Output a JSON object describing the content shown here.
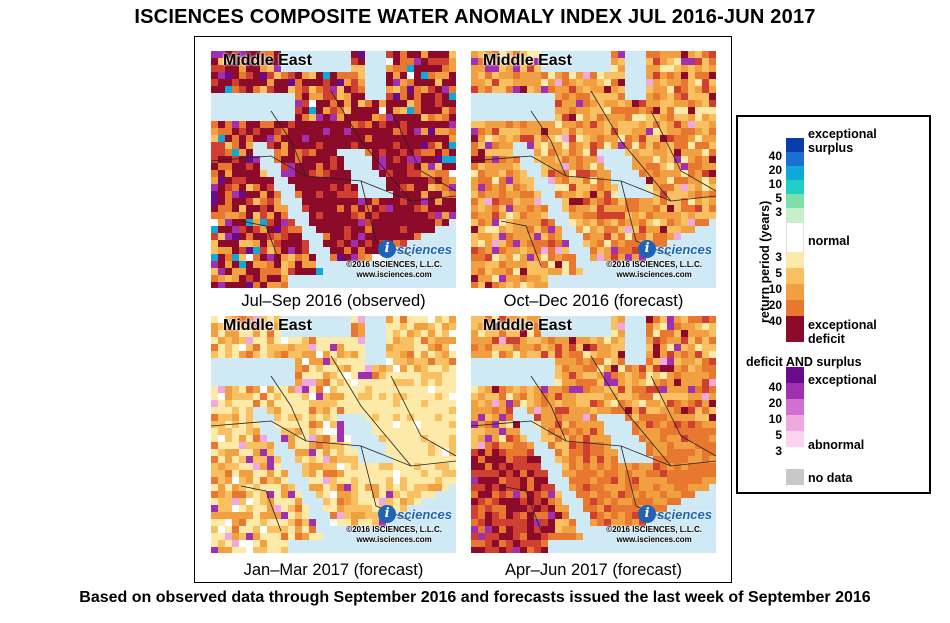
{
  "title": "ISCIENCES COMPOSITE WATER ANOMALY INDEX JUL 2016-JUN 2017",
  "panels": [
    {
      "map_title": "Middle East",
      "caption": "Jul–Sep 2016 (observed)",
      "logo": "sciences",
      "copyright": "©2016  ISCIENCES, L.L.C.",
      "website": "www.isciences.com",
      "dominant": "severe-deficit"
    },
    {
      "map_title": "Middle East",
      "caption": "Oct–Dec 2016 (forecast)",
      "logo": "sciences",
      "copyright": "©2016  ISCIENCES, L.L.C.",
      "website": "www.isciences.com",
      "dominant": "moderate-deficit"
    },
    {
      "map_title": "Middle East",
      "caption": "Jan–Mar 2017 (forecast)",
      "logo": "sciences",
      "copyright": "©2016  ISCIENCES, L.L.C.",
      "website": "www.isciences.com",
      "dominant": "mild-deficit"
    },
    {
      "map_title": "Middle East",
      "caption": "Apr–Jun 2017 (forecast)",
      "logo": "sciences",
      "copyright": "©2016  ISCIENCES, L.L.C.",
      "website": "www.isciences.com",
      "dominant": "moderate-deficit"
    }
  ],
  "legend": {
    "axis_label": "return period (years)",
    "surplus_top_label": "exceptional",
    "surplus_top_label2": "surplus",
    "normal_label": "normal",
    "deficit_bottom_label": "exceptional",
    "deficit_bottom_label2": "deficit",
    "both_header": "deficit AND surplus",
    "both_top_label": "exceptional",
    "both_bottom_label": "abnormal",
    "nodata_label": "no data",
    "surplus_ticks": [
      "40",
      "20",
      "10",
      "5",
      "3"
    ],
    "deficit_ticks": [
      "3",
      "5",
      "10",
      "20",
      "40"
    ],
    "both_ticks": [
      "40",
      "20",
      "10",
      "5",
      "3"
    ],
    "surplus_colors": [
      "#0a3ca8",
      "#1a6fd0",
      "#10a8d8",
      "#20d0c8",
      "#7ee0a8",
      "#c8f0c8"
    ],
    "normal_color": "#ffffff",
    "deficit_colors": [
      "#fde9a8",
      "#f8c060",
      "#f0a040",
      "#e87830",
      "#d04030",
      "#8c0a2a"
    ],
    "both_colors": [
      "#6a0a8c",
      "#a030b0",
      "#d070d0",
      "#f0a8e0",
      "#fad4f0"
    ],
    "nodata_color": "#c8c8c8"
  },
  "footer": "Based on observed data through September 2016 and forecasts issued the last week of September 2016"
}
